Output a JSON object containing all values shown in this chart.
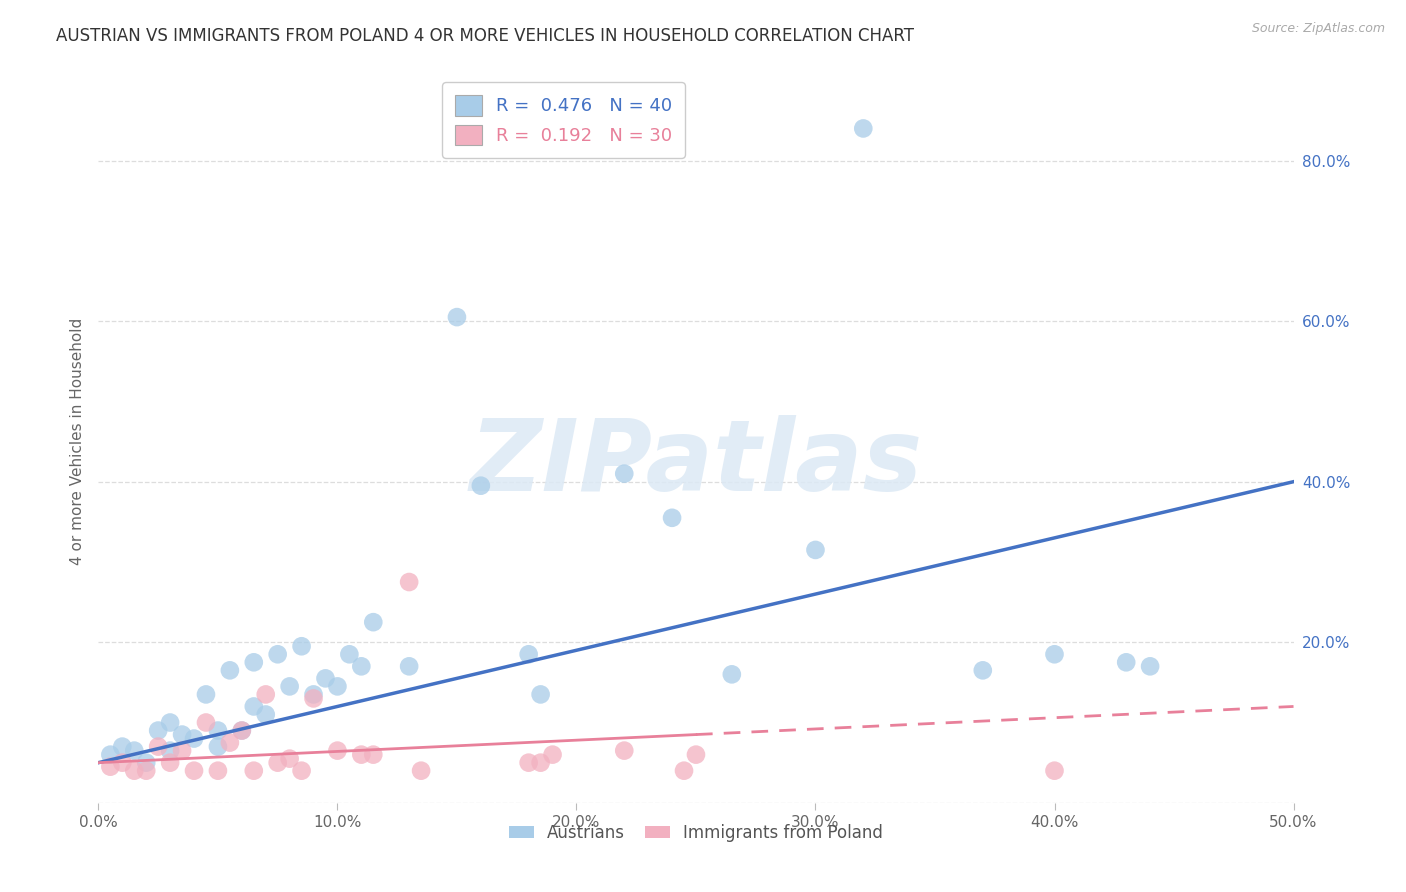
{
  "title": "AUSTRIAN VS IMMIGRANTS FROM POLAND 4 OR MORE VEHICLES IN HOUSEHOLD CORRELATION CHART",
  "source": "Source: ZipAtlas.com",
  "ylabel": "4 or more Vehicles in Household",
  "xlim": [
    0.0,
    0.5
  ],
  "ylim": [
    0.0,
    0.9
  ],
  "xticks": [
    0.0,
    0.1,
    0.2,
    0.3,
    0.4,
    0.5
  ],
  "yticks": [
    0.0,
    0.2,
    0.4,
    0.6,
    0.8
  ],
  "ytick_labels": [
    "",
    "20.0%",
    "40.0%",
    "60.0%",
    "80.0%"
  ],
  "xtick_labels": [
    "0.0%",
    "10.0%",
    "20.0%",
    "30.0%",
    "40.0%",
    "50.0%"
  ],
  "blue_R": 0.476,
  "blue_N": 40,
  "pink_R": 0.192,
  "pink_N": 30,
  "blue_color": "#A8CCE8",
  "pink_color": "#F2B0C0",
  "blue_line_color": "#4472C4",
  "pink_line_color": "#E8809A",
  "watermark": "ZIPatlas",
  "blue_scatter_x": [
    0.005,
    0.01,
    0.015,
    0.02,
    0.025,
    0.03,
    0.03,
    0.035,
    0.04,
    0.045,
    0.05,
    0.05,
    0.055,
    0.06,
    0.065,
    0.065,
    0.07,
    0.075,
    0.08,
    0.085,
    0.09,
    0.095,
    0.1,
    0.105,
    0.11,
    0.115,
    0.13,
    0.15,
    0.16,
    0.18,
    0.185,
    0.22,
    0.24,
    0.265,
    0.3,
    0.32,
    0.37,
    0.4,
    0.43,
    0.44
  ],
  "blue_scatter_y": [
    0.06,
    0.07,
    0.065,
    0.05,
    0.09,
    0.065,
    0.1,
    0.085,
    0.08,
    0.135,
    0.07,
    0.09,
    0.165,
    0.09,
    0.12,
    0.175,
    0.11,
    0.185,
    0.145,
    0.195,
    0.135,
    0.155,
    0.145,
    0.185,
    0.17,
    0.225,
    0.17,
    0.605,
    0.395,
    0.185,
    0.135,
    0.41,
    0.355,
    0.16,
    0.315,
    0.84,
    0.165,
    0.185,
    0.175,
    0.17
  ],
  "pink_scatter_x": [
    0.005,
    0.01,
    0.015,
    0.02,
    0.025,
    0.03,
    0.035,
    0.04,
    0.045,
    0.05,
    0.055,
    0.06,
    0.065,
    0.07,
    0.075,
    0.08,
    0.085,
    0.09,
    0.1,
    0.11,
    0.115,
    0.13,
    0.135,
    0.18,
    0.185,
    0.19,
    0.22,
    0.245,
    0.25,
    0.4
  ],
  "pink_scatter_y": [
    0.045,
    0.05,
    0.04,
    0.04,
    0.07,
    0.05,
    0.065,
    0.04,
    0.1,
    0.04,
    0.075,
    0.09,
    0.04,
    0.135,
    0.05,
    0.055,
    0.04,
    0.13,
    0.065,
    0.06,
    0.06,
    0.275,
    0.04,
    0.05,
    0.05,
    0.06,
    0.065,
    0.04,
    0.06,
    0.04
  ],
  "background_color": "#FFFFFF",
  "grid_color": "#DDDDDD"
}
